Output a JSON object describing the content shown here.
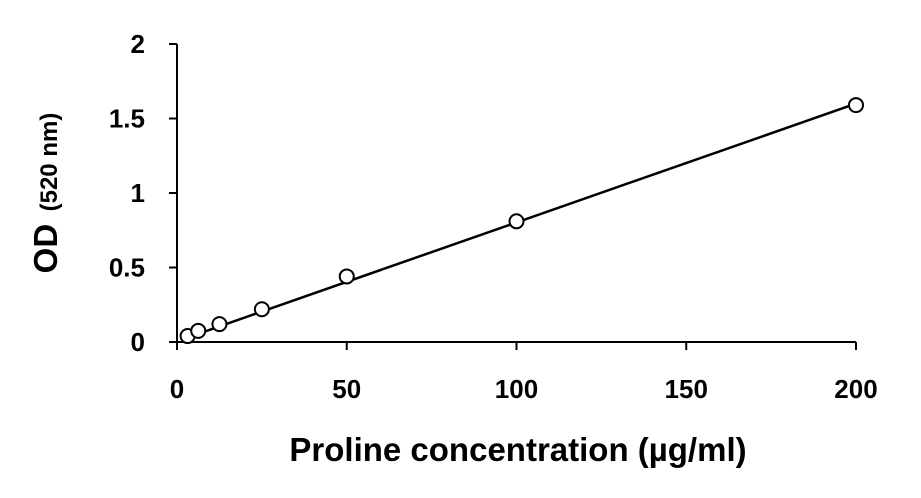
{
  "chart_data": {
    "type": "scatter",
    "title": "",
    "xlabel": "Proline concentration (µg/ml)",
    "ylabel_main": "OD",
    "ylabel_unit": "(520 nm)",
    "xlim": [
      0,
      200
    ],
    "ylim": [
      0,
      2
    ],
    "x_ticks": [
      0,
      50,
      100,
      150,
      200
    ],
    "y_ticks": [
      0,
      0.5,
      1,
      1.5,
      2
    ],
    "x_tick_labels": [
      "0",
      "50",
      "100",
      "150",
      "200"
    ],
    "y_tick_labels": [
      "0",
      "0.5",
      "1",
      "1.5",
      "2"
    ],
    "grid": false,
    "marker": "open-circle",
    "series": [
      {
        "x": [
          3.125,
          6.25,
          12.5,
          25,
          50,
          100,
          200
        ],
        "y": [
          0.04,
          0.075,
          0.12,
          0.22,
          0.44,
          0.81,
          1.59
        ]
      }
    ],
    "trendline": {
      "type": "linear",
      "x": [
        3.125,
        200
      ],
      "y": [
        0.03,
        1.6
      ]
    },
    "colors": {
      "marker_stroke": "#000000",
      "marker_fill": "#ffffff",
      "line": "#000000",
      "axis": "#000000"
    }
  }
}
